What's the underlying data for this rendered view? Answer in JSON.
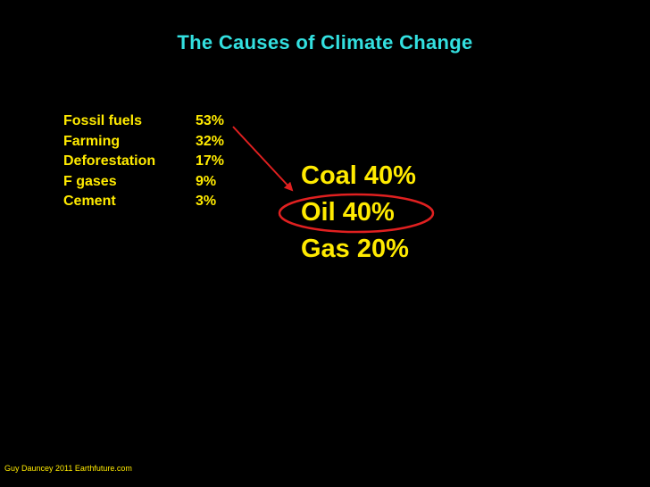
{
  "slide": {
    "title": "The Causes of Climate Change",
    "causes": [
      {
        "name": "Fossil fuels",
        "value": "53%"
      },
      {
        "name": "Farming",
        "value": "32%"
      },
      {
        "name": "Deforestation",
        "value": "17%"
      },
      {
        "name": "F gases",
        "value": "9%"
      },
      {
        "name": "Cement",
        "value": "3%"
      }
    ],
    "fuels": [
      {
        "label": "Coal 40%"
      },
      {
        "label": "Oil 40%"
      },
      {
        "label": "Gas 20%"
      }
    ],
    "footer": "Guy Dauncey 2011 Earthfuture.com"
  },
  "colors": {
    "background": "#000000",
    "title": "#33e0e0",
    "text": "#ffea00",
    "annotation": "#e02020"
  }
}
